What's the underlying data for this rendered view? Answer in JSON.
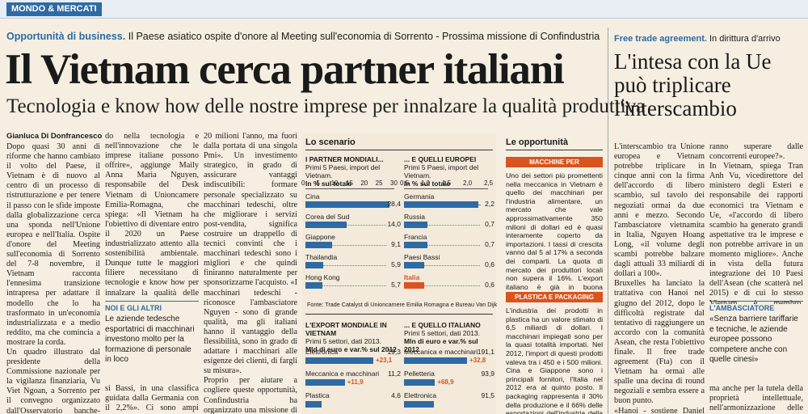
{
  "section": "MONDO & MERCATI",
  "kicker": {
    "bold": "Opportunità di business.",
    "text": "Il Paese asiatico ospite d'onore al Meeting sull'economia di Sorrento - Prossima missione di Confindustria"
  },
  "headline": "Il Vietnam cerca partner italiani",
  "subhead": "Tecnologia e know how delle nostre imprese per innalzare la qualità produttiva",
  "side": {
    "kicker_bold": "Free trade agreement.",
    "kicker_text": "In dirittura d'arrivo",
    "headline": "L'intesa con la Ue può triplicare l'interscambio"
  },
  "byline": "Gianluca Di Donfrancesco",
  "col1": "Dopo quasi 30 anni di riforme che hanno cambiato il volto del Paese, il Vietnam è di nuovo al centro di un processo di ristrutturazione e per tenere il passo con le sfide imposte dalla globalizzazione cerca una sponda nell'Unione europea e nell'Italia. Ospite d'onore del Meeting sull'economia di Sorrento del 7-8 novembre, il Vietnam racconta l'ennesima transizione intrapresa per adattare il modello che lo ha trasformato in un'economia industrializzata e a medio reddito, ma che comincia a mostrare la corda.\n  Un quadro illustrato dal presidente della Commissione nazionale per la vigilanza finanziaria, Vu Viet Ngoan, a Sorrento per il convegno organizzato dall'Osservatorio banche-imprese: «Negli ultimi anni l'economia ha rallentato e ha perso competitività e produttività. Il vecchio modello di sviluppo non è più adeguato a mantenere una crescita robusta. Ci serve una spinta più potente». Per questo, già nel 2011, il governo ha lanciato un piano di riforme orientate al mercato e mirate a rendere più trasparente e competitivo il sistema in cui si muovono le imprese, investen-",
  "col2": "do nella tecnologia e nell'innovazione che le imprese italiane possono offrire», aggiunge Maily Anna Maria Nguyen, responsabile del Desk Vietnam di Unioncamere Emilia-Romagna, che spiega: «Il Vietnam ha l'obiettivo di diventare entro il 2020 un Paese industrializzato attento alla sostenibilità ambientale. Dunque tutte le maggiori filiere necessitano di tecnologie e know how per innalzare la qualità delle produzioni. Come risulta dalla banca dati Trade Catalyst, in un anno, il 2013, l'export italiano verso il Vietnam è cresciuto del 32%. Tra i partner europei, l'Italia è al quinto posto con lo 0,6% come quota di mercato assieme al Paese",
  "col2_box": {
    "title": "NOI E GLI ALTRI",
    "text": "Le aziende tedesche esportatrici di macchinari investono molto per la formazione di personale in loco"
  },
  "col2_tail": "si Bassi, in una classifica guidata dalla Germania con il 2,2%». Ci sono ampi margini di crescita e notevoli potenzialità di collaborazione anche tenendo conto che il",
  "col3": "20 milioni l'anno, ma fuori dalla portata di una singola Pmi». Un investimento strategico, in grado di assicurare vantaggi indiscutibili: formare personale specializzato su macchinari tedeschi, oltre che migliorare i servizi post-vendita, significa costruire un drappello di tecnici convinti che i macchinari tedeschi sono i migliori e che quindi finiranno naturalmente per sponsorizzarne l'acquisto. «I macchinari tedeschi - riconosce l'ambasciatore Nguyen - sono di grande qualità, ma gli italiani hanno il vantaggio della flessibilità, sono in grado di adattare i macchinari alle esigenze dei clienti, di fargli su misura».\n  Proprio per aiutare a cogliere queste opportunità, Confindustria ha organizzato una missione di sistema in Vietnam. «Abbiamo già registrato l'adesione di 120 aziende - dice Daniel Kraus, vicedirettore generale di Confindustria - e l'obiettivo sarà di promuovere in particolare la collaborazione nei settori della meccanica, del biomedicale e medicale, e anche nell'energia, impiantistica, infrastrutture, trasporti e ict, di cui il Vietnam c'è molto bisogno». Il sistema industriale italiano, aggiunge Kraus,",
  "scenario": {
    "title": "Lo scenario",
    "chart1": {
      "title": "I PARTNER MONDIALI...",
      "sub": "Primi 5 Paesi, import del Vietnam.",
      "unit": "In % sul totale",
      "ticks": [
        "0",
        "5",
        "10",
        "15",
        "20",
        "25",
        "30"
      ]
    },
    "chart2": {
      "title": "... E QUELLI EUROPEI",
      "sub": "Primi 5 Paesi, import del Vietnam.",
      "unit": "In % sul totale",
      "ticks": [
        "0,5",
        "1,0",
        "1,5",
        "2,0",
        "2,5"
      ]
    },
    "source": "Fonte: Trade Catalyst di Unioncamere Emilia Romagna e Bureau Van Dijk",
    "chart3": {
      "title": "L'EXPORT MONDIALE IN VIETNAM",
      "sub": "Primi 5 settori, dati 2013.",
      "unit": "Mld di euro e var.% sul 2012"
    },
    "chart4": {
      "title": "... E QUELLO ITALIANO",
      "sub": "Primi 5 settori, dati 2013.",
      "unit": "Mln di euro e var.% sul 2012"
    }
  },
  "chart_data": [
    {
      "type": "bar",
      "title": "I PARTNER MONDIALI...",
      "categories": [
        "Cina",
        "Corea del Sud",
        "Giappone",
        "Thailandia",
        "Hong Kong"
      ],
      "values": [
        28.4,
        14.0,
        9.1,
        5.9,
        5.7
      ],
      "labels": [
        "28,4",
        "14,0",
        "9,1",
        "5,9",
        "5,7"
      ],
      "xlim": [
        0,
        30
      ]
    },
    {
      "type": "bar",
      "title": "... E QUELLI EUROPEI",
      "categories": [
        "Germania",
        "Russia",
        "Francia",
        "Paesi Bassi",
        "Italia"
      ],
      "values": [
        2.2,
        0.7,
        0.7,
        0.6,
        0.6
      ],
      "labels": [
        "2,2",
        "0,7",
        "0,7",
        "0,6",
        "0,6"
      ],
      "highlight": "Italia",
      "xlim": [
        0,
        2.5
      ]
    },
    {
      "type": "bar",
      "title": "L'EXPORT MONDIALE IN VIETNAM",
      "categories": [
        "Elettronica",
        "Meccanica e macchinari",
        "Plastica"
      ],
      "values": [
        19.3,
        11.2,
        4.6
      ],
      "labels": [
        "19,3",
        "11,2",
        "4,6"
      ],
      "changes": [
        "+23,1",
        "+11,9",
        ""
      ]
    },
    {
      "type": "bar",
      "title": "... E QUELLO ITALIANO",
      "categories": [
        "Meccanica e macchinari",
        "Pelletteria",
        "Elettronica"
      ],
      "values": [
        191.1,
        93.9,
        91.5
      ],
      "labels": [
        "191,1",
        "93,9",
        "91,5"
      ],
      "changes": [
        "+32,8",
        "+68,9",
        ""
      ]
    }
  ],
  "opportunita": {
    "title": "Le opportunità",
    "tag1": "MACCHINE PER L'ALIMENTARE",
    "text1": "Uno dei settori più promettenti nella meccanica in Vietnam è quello dei macchinari per l'industria alimentare, un mercato che vale approssimativamente 350 milioni di dollari ed è quasi interamente coperto da importazioni. I tassi di crescita vanno dal 5 al 17% a seconda dei comparti. La quota di mercato dei produttori locali non supera il 16%. L'export italiano è già in buona posizione.",
    "tag2": "PLASTICA E PACKAGING",
    "text2": "L'industria dei prodotti in plastica ha un valore stimato di 6,5 miliardi di dollari. I macchinari impiegati sono per la quasi totalità importati. Nel 2012, l'import di questi prodotti valeva tra i 450 e i 500 milioni. Cina e Giappone sono i principali fornitori, l'Italia nel 2012 era al quinto posto. Il packaging rappresenta il 30% della produzione e il 66% delle esportazioni dell'industria della plastica."
  },
  "side_col1": "L'interscambio tra Unione europea e Vietnam potrebbe triplicare in cinque anni con la firma dell'accordo di libero scambio, sul tavolo dei negoziati ormai da due anni e mezzo. Secondo l'ambasciatore vietnamita in Italia, Nguyen Hoang Long, «il volume degli scambi potrebbe balzare dagli attuali 33 miliardi di dollari a 100».\n  Bruxelles ha lanciato la trattativa con Hanoi nel giugno del 2012, dopo le difficoltà registrate dal tentativo di raggiungere un accordo con la comunità Asean, che resta l'obiettivo finale. Il free trade agreement (Fta) con il Vietnam ha ormai alle spalle una decina di round negoziali e sembra essere a buon punto.\n  «Hanoi - sostiene Daniel Kraus, vice direttore generale di Confindustria - ha mostrato grande disponibilità e spero si possa giungere in breve tempo alla conclusione di una trattativa, che, rispetto ad altre, presenta molti meno problemi. Oltre che sui dazi, il trattato ci farà fare grandi passi avanti sulle barriere non tariffarie e mi aspet-",
  "side_col2": "ranno superare dalle concorrenti europee?».\n  In Vietnam, spiega Tran Anh Vu, vicedirettore del ministero degli Esteri e responsabile dei rapporti economici tra Vietnam e Ue, «l'accordo di libero scambio ha generato grandi aspettative tra le imprese e non potrebbe arrivare in un momento migliore». Anche in vista della futura integrazione dei 10 Paesi dell'Asean (che scatterà nel 2015) e di cui lo stesso Vietnam è membro. «L'intesa - prosegue Tran - creerà grandi benefici, non solo in termini di abbattimento delle tariffe,",
  "ambasciatore": {
    "title": "L'AMBASCIATORE",
    "quote": "«Senza barriere tariffarie e tecniche, le aziende europee possono competere anche con quelle cinesi»"
  },
  "side_col2_tail": "ma anche per la tutela della proprietà intellettuale, nell'armonizzazione delle norme tecniche e sugli appalti».\n  Potrebbe insomma aprirsi"
}
